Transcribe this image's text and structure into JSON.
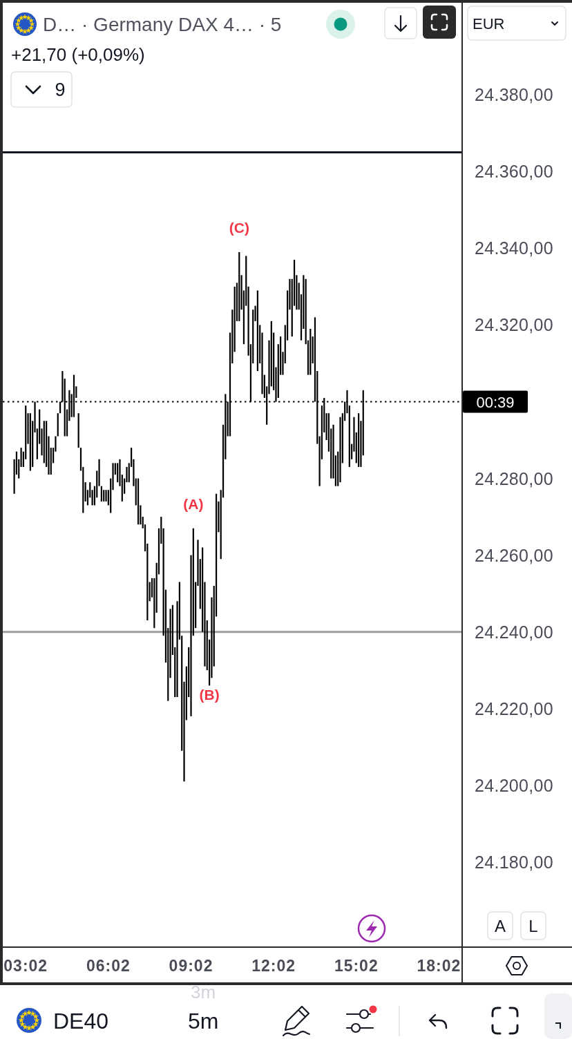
{
  "chart_data": {
    "type": "bar",
    "title": "D… · Germany DAX 4… · 5",
    "subtitle": "+21,70 (+0,09%)",
    "color": "#000000",
    "x": [
      2.6167,
      2.7,
      2.7833,
      2.8667,
      2.95,
      3.0333,
      3.1167,
      3.2,
      3.2833,
      3.3667,
      3.45,
      3.5333,
      3.6167,
      3.7,
      3.7833,
      3.8667,
      3.95,
      4.0333,
      4.1167,
      4.2,
      4.2833,
      4.3667,
      4.45,
      4.5333,
      4.6167,
      4.7,
      4.7833,
      4.8667,
      4.95,
      5.0333,
      5.1167,
      5.2,
      5.2833,
      5.3667,
      5.45,
      5.5333,
      5.6167,
      5.7,
      5.7833,
      5.8667,
      5.95,
      6.0333,
      6.1167,
      6.2,
      6.2833,
      6.3667,
      6.45,
      6.5333,
      6.6167,
      6.7,
      6.7833,
      6.8667,
      6.95,
      7.0333,
      7.1167,
      7.2,
      7.2833,
      7.3667,
      7.45,
      7.5333,
      7.6167,
      7.7,
      7.7833,
      7.8667,
      7.95,
      8.0333,
      8.1167,
      8.2,
      8.2833,
      8.3667,
      8.45,
      8.5333,
      8.6167,
      8.7,
      8.7833,
      8.8667,
      8.95,
      9.0333,
      9.1167,
      9.2,
      9.2833,
      9.3667,
      9.45,
      9.5333,
      9.6167,
      9.7,
      9.7833,
      9.8667,
      9.95,
      10.0333,
      10.1167,
      10.2,
      10.2833,
      10.3667,
      10.45,
      10.5333,
      10.6167,
      10.7,
      10.7833,
      10.8667,
      10.95,
      11.0333,
      11.1167,
      11.2,
      11.2833,
      11.3667,
      11.45,
      11.5333,
      11.6167,
      11.7,
      11.7833,
      11.8667,
      11.95,
      12.0333,
      12.1167,
      12.2,
      12.2833,
      12.3667,
      12.45,
      12.5333,
      12.6167,
      12.7,
      12.7833,
      12.8667,
      12.95,
      13.0333,
      13.1167,
      13.2,
      13.2833,
      13.3667,
      13.45,
      13.5333,
      13.6167,
      13.7,
      13.7833,
      13.8667,
      13.95,
      14.0333,
      14.1167,
      14.2,
      14.2833,
      14.3667,
      14.45,
      14.5333,
      14.6167,
      14.7,
      14.7833,
      14.8667,
      14.95,
      15.0333,
      15.1167,
      15.2,
      15.2833
    ],
    "base": [
      24276,
      24281,
      24280,
      24283,
      24283,
      24285,
      24289,
      24282,
      24283,
      24292,
      24285,
      24289,
      24286,
      24284,
      24283,
      24281,
      24281,
      24284,
      24287,
      24291,
      24297,
      24300,
      24291,
      24291,
      24295,
      24296,
      24296,
      24301,
      24288,
      24282,
      24271,
      24274,
      24273,
      24275,
      24273,
      24273,
      24275,
      24278,
      24274,
      24274,
      24274,
      24273,
      24271,
      24277,
      24281,
      24279,
      24278,
      24274,
      24276,
      24279,
      24279,
      24283,
      24278,
      24273,
      24268,
      24268,
      24267,
      24261,
      24243,
      24248,
      24249,
      24241,
      24245,
      24255,
      24263,
      24239,
      24232,
      24222,
      24228,
      24234,
      24223,
      24223,
      24238,
      24209,
      24201,
      24217,
      24223,
      24218,
      24239,
      24241,
      24252,
      24246,
      24240,
      24231,
      24230,
      24226,
      24228,
      24231,
      24244,
      24266,
      24259,
      24275,
      24285,
      24291,
      24291,
      24310,
      24313,
      24321,
      24321,
      24324,
      24315,
      24325,
      24312,
      24300,
      24310,
      24321,
      24308,
      24310,
      24302,
      24301,
      24294,
      24302,
      24304,
      24303,
      24300,
      24301,
      24307,
      24307,
      24310,
      24316,
      24324,
      24317,
      24325,
      24324,
      24324,
      24316,
      24319,
      24315,
      24307,
      24307,
      24310,
      24300,
      24289,
      24278,
      24285,
      24292,
      24290,
      24287,
      24280,
      24280,
      24278,
      24278,
      24279,
      24284,
      24295,
      24297,
      24283,
      24285,
      24287,
      24284,
      24283,
      24283,
      24286
    ],
    "values": [
      9,
      6,
      5,
      5,
      4,
      14,
      8,
      15,
      12,
      8,
      8,
      9,
      7,
      11,
      12,
      10,
      7,
      4,
      4,
      6,
      3,
      8,
      15,
      7,
      8,
      6,
      11,
      3,
      9,
      6,
      12,
      5,
      4,
      4,
      4,
      5,
      7,
      7,
      4,
      3,
      3,
      4,
      9,
      7,
      3,
      5,
      7,
      7,
      4,
      4,
      5,
      5,
      7,
      7,
      12,
      5,
      3,
      7,
      20,
      5,
      5,
      13,
      13,
      12,
      7,
      28,
      19,
      19,
      18,
      13,
      13,
      25,
      15,
      30,
      26,
      14,
      13,
      42,
      28,
      12,
      12,
      13,
      22,
      22,
      13,
      12,
      21,
      21,
      32,
      8,
      18,
      19,
      17,
      9,
      27,
      14,
      17,
      10,
      18,
      9,
      14,
      13,
      18,
      15,
      14,
      4,
      21,
      10,
      16,
      6,
      10,
      14,
      17,
      15,
      9,
      14,
      10,
      6,
      10,
      13,
      8,
      15,
      12,
      9,
      7,
      12,
      14,
      17,
      9,
      12,
      7,
      22,
      19,
      13,
      14,
      9,
      7,
      10,
      13,
      14,
      8,
      9,
      17,
      13,
      5,
      6,
      16,
      4,
      9,
      8,
      14,
      12,
      17
    ],
    "xlim": [
      2.2,
      18.85
    ],
    "xticks": [
      {
        "value": 3.0333,
        "label": "03:02"
      },
      {
        "value": 6.0333,
        "label": "06:02"
      },
      {
        "value": 9.0333,
        "label": "09:02"
      },
      {
        "value": 12.0333,
        "label": "12:02"
      },
      {
        "value": 15.0333,
        "label": "15:02"
      },
      {
        "value": 18.0333,
        "label": "18:02"
      }
    ],
    "ylim": [
      24158,
      24404
    ],
    "yticks": [
      {
        "value": 24180,
        "label": "24.180,00"
      },
      {
        "value": 24200,
        "label": "24.200,00"
      },
      {
        "value": 24220,
        "label": "24.220,00"
      },
      {
        "value": 24240,
        "label": "24.240,00"
      },
      {
        "value": 24260,
        "label": "24.260,00"
      },
      {
        "value": 24280,
        "label": "24.280,00"
      },
      {
        "value": 24320,
        "label": "24.320,00"
      },
      {
        "value": 24340,
        "label": "24.340,00"
      },
      {
        "value": 24360,
        "label": "24.360,00"
      },
      {
        "value": 24380,
        "label": "24.380,00"
      }
    ],
    "ref_lines": [
      {
        "axis": "y",
        "value": 24365,
        "color": "#131722"
      },
      {
        "axis": "y",
        "value": 24240,
        "color": "#9e9e9e"
      },
      {
        "axis": "y",
        "value": 24300,
        "color": "#000000",
        "line_style": "dotted"
      }
    ],
    "annotations": [
      {
        "text": "(A)",
        "x": 9.1167,
        "y": 24267
      },
      {
        "text": "(B)",
        "x": 9.7,
        "y": 24226
      },
      {
        "text": "(C)",
        "x": 10.7833,
        "y": 24339
      },
      "9",
      "EUR",
      "A",
      "L",
      "DE40",
      "5m",
      "3m",
      "00:39"
    ]
  }
}
